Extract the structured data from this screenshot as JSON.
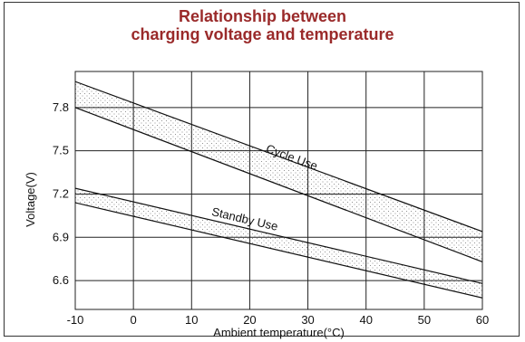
{
  "chart_data": {
    "type": "area",
    "title_line1": "Relationship between",
    "title_line2": "charging voltage and temperature",
    "xlabel": "Ambient temperature(°C)",
    "ylabel": "Voltage(V)",
    "x_ticks": [
      -10,
      0,
      10,
      20,
      30,
      40,
      50,
      60
    ],
    "y_ticks": [
      6.6,
      6.9,
      7.2,
      7.5,
      7.8
    ],
    "xlim": [
      -10,
      60
    ],
    "ylim": [
      6.4,
      8.05
    ],
    "grid": true,
    "colors": {
      "title": "#9a2a2a",
      "lines": "#111111",
      "grid": "#222222",
      "stipple": "#777777"
    },
    "series": [
      {
        "name": "Cycle Use",
        "label_at": {
          "x": 27,
          "y": 7.43
        },
        "upper": {
          "x": [
            -10,
            60
          ],
          "y": [
            7.98,
            6.94
          ]
        },
        "lower": {
          "x": [
            -10,
            60
          ],
          "y": [
            7.8,
            6.73
          ]
        }
      },
      {
        "name": "Standby Use",
        "label_at": {
          "x": 19,
          "y": 7.0
        },
        "upper": {
          "x": [
            -10,
            60
          ],
          "y": [
            7.24,
            6.58
          ]
        },
        "lower": {
          "x": [
            -10,
            60
          ],
          "y": [
            7.14,
            6.48
          ]
        }
      }
    ]
  }
}
